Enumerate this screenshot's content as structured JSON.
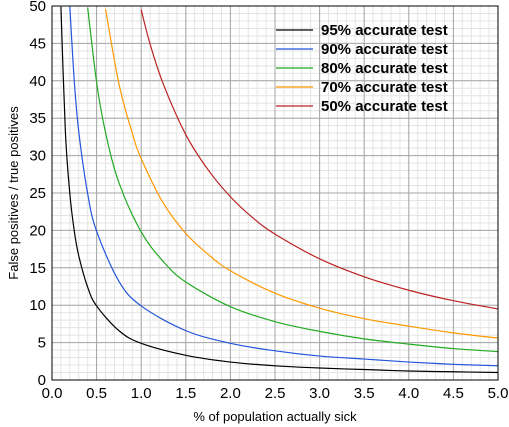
{
  "chart_data": {
    "type": "line",
    "title": "",
    "xlabel": "% of population actually sick",
    "ylabel": "False positives / true positives",
    "xlim": [
      0,
      5
    ],
    "ylim": [
      0,
      50
    ],
    "x_ticks": [
      "0.0",
      "0.5",
      "1.0",
      "1.5",
      "2.0",
      "2.5",
      "3.0",
      "3.5",
      "4.0",
      "4.5",
      "5.0"
    ],
    "y_ticks": [
      "0",
      "5",
      "10",
      "15",
      "20",
      "25",
      "30",
      "35",
      "40",
      "45",
      "50"
    ],
    "x_minor_step": 0.1,
    "y_minor_step": 1,
    "grid": true,
    "legend_position": "top-right",
    "series": [
      {
        "name": "95% accurate test",
        "color": "#000000",
        "x": [
          0.1,
          0.15,
          0.2,
          0.25,
          0.3,
          0.4,
          0.5,
          0.75,
          1.0,
          1.5,
          2.0,
          2.5,
          3.0,
          3.5,
          4.0,
          4.5,
          5.0
        ],
        "y": [
          49.9,
          33.2,
          24.9,
          19.9,
          16.6,
          12.4,
          9.9,
          6.6,
          4.9,
          3.3,
          2.4,
          1.9,
          1.6,
          1.4,
          1.2,
          1.1,
          1.0
        ]
      },
      {
        "name": "90% accurate test",
        "color": "#2255dd",
        "x": [
          0.2,
          0.25,
          0.3,
          0.4,
          0.5,
          0.75,
          1.0,
          1.5,
          2.0,
          2.5,
          3.0,
          3.5,
          4.0,
          4.5,
          5.0
        ],
        "y": [
          49.9,
          39.9,
          33.2,
          24.9,
          19.9,
          13.2,
          9.9,
          6.6,
          4.9,
          3.9,
          3.2,
          2.8,
          2.4,
          2.1,
          1.9
        ]
      },
      {
        "name": "80% accurate test",
        "color": "#22aa22",
        "x": [
          0.4,
          0.5,
          0.6,
          0.75,
          1.0,
          1.25,
          1.5,
          2.0,
          2.5,
          3.0,
          3.5,
          4.0,
          4.5,
          5.0
        ],
        "y": [
          49.8,
          39.8,
          33.1,
          26.4,
          19.8,
          15.8,
          13.1,
          9.8,
          7.8,
          6.5,
          5.5,
          4.8,
          4.2,
          3.8
        ]
      },
      {
        "name": "70% accurate test",
        "color": "#ff9900",
        "x": [
          0.6,
          0.75,
          0.9,
          1.0,
          1.25,
          1.5,
          1.75,
          2.0,
          2.5,
          3.0,
          3.5,
          4.0,
          4.5,
          5.0
        ],
        "y": [
          49.6,
          39.6,
          33.0,
          29.6,
          23.6,
          19.6,
          16.8,
          14.6,
          11.6,
          9.6,
          8.2,
          7.2,
          6.3,
          5.6
        ]
      },
      {
        "name": "50% accurate test",
        "color": "#bb2222",
        "x": [
          1.0,
          1.1,
          1.25,
          1.5,
          1.75,
          2.0,
          2.25,
          2.5,
          3.0,
          3.5,
          4.0,
          4.5,
          5.0
        ],
        "y": [
          49.5,
          44.9,
          39.5,
          32.8,
          28.1,
          24.5,
          21.7,
          19.5,
          16.2,
          13.8,
          12.0,
          10.6,
          9.5
        ]
      }
    ]
  }
}
